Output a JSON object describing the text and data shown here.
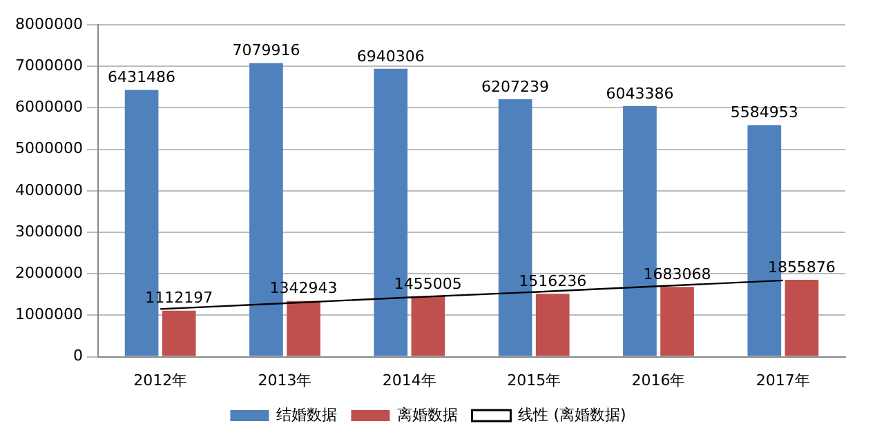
{
  "chart_data": {
    "type": "bar",
    "categories": [
      "2012年",
      "2013年",
      "2014年",
      "2015年",
      "2016年",
      "2017年"
    ],
    "series": [
      {
        "name": "结婚数据",
        "color": "#4f81bd",
        "values": [
          6431486,
          7079916,
          6940306,
          6207239,
          6043386,
          5584953
        ],
        "value_labels": [
          "6431486",
          "7079916",
          "6940306",
          "6207239",
          "6043386",
          "5584953"
        ]
      },
      {
        "name": "离婚数据",
        "color": "#c0504d",
        "values": [
          1112197,
          1342943,
          1455005,
          1516236,
          1683068,
          1855876
        ],
        "value_labels": [
          "1112197",
          "1342943",
          "1455005",
          "1516236",
          "1683068",
          "1855876"
        ]
      },
      {
        "name": "线性 (离婚数据)",
        "type": "line",
        "color": "#000000",
        "values": [
          1150000,
          1290000,
          1430000,
          1560000,
          1700000,
          1840000
        ],
        "marker": "none",
        "line_style": "solid"
      }
    ],
    "ylim": [
      0,
      8000000
    ],
    "yticks": [
      0,
      1000000,
      2000000,
      3000000,
      4000000,
      5000000,
      6000000,
      7000000,
      8000000
    ],
    "grid": "y",
    "legend": "bottom"
  }
}
